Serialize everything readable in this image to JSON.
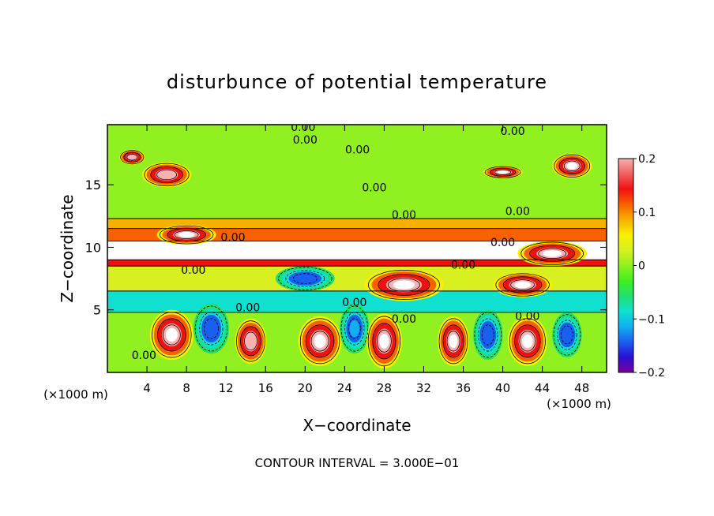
{
  "chart_data": {
    "type": "heatmap",
    "title": "disturbunce of potential temperature",
    "xlabel": "X−coordinate",
    "ylabel": "Z−coordinate",
    "x_unit_label": "(×1000 m)",
    "x_unit_label_left": "(×1000 m)",
    "xlim": [
      0,
      50.5
    ],
    "ylim": [
      0,
      19.8
    ],
    "x_ticks": [
      4,
      8,
      12,
      16,
      20,
      24,
      28,
      32,
      36,
      40,
      44,
      48
    ],
    "y_ticks": [
      5,
      10,
      15
    ],
    "colorbar": {
      "range": [
        -0.2,
        0.2
      ],
      "tick_labels": [
        "0.2",
        "0.1",
        "0",
        "−0.1",
        "−0.2"
      ],
      "tick_values": [
        0.2,
        0.1,
        0,
        -0.1,
        -0.2
      ],
      "colors": [
        "#7b009b",
        "#2a10d0",
        "#1a60f0",
        "#10b0f0",
        "#10e0d0",
        "#20e070",
        "#40f020",
        "#90f020",
        "#d8f020",
        "#f8f000",
        "#f8b000",
        "#f86000",
        "#f01010",
        "#f06060",
        "#f8b0b0"
      ]
    },
    "contour_labels": [
      {
        "text": "0.00",
        "x": 19.8,
        "z": 19.6
      },
      {
        "text": "0.00",
        "x": 20.0,
        "z": 18.6
      },
      {
        "text": "0.00",
        "x": 25.3,
        "z": 17.8
      },
      {
        "text": "0.00",
        "x": 41.0,
        "z": 19.3
      },
      {
        "text": "0.00",
        "x": 27.0,
        "z": 14.8
      },
      {
        "text": "0.00",
        "x": 30.0,
        "z": 12.6
      },
      {
        "text": "0.00",
        "x": 41.5,
        "z": 12.9
      },
      {
        "text": "0.00",
        "x": 12.7,
        "z": 10.8
      },
      {
        "text": "0.00",
        "x": 40.0,
        "z": 10.4
      },
      {
        "text": "0.00",
        "x": 36.0,
        "z": 8.6
      },
      {
        "text": "0.00",
        "x": 8.7,
        "z": 8.2
      },
      {
        "text": "0.00",
        "x": 14.2,
        "z": 5.2
      },
      {
        "text": "0.00",
        "x": 25.0,
        "z": 5.6
      },
      {
        "text": "0.00",
        "x": 30.0,
        "z": 4.3
      },
      {
        "text": "0.00",
        "x": 42.5,
        "z": 4.5
      },
      {
        "text": "0.00",
        "x": 3.7,
        "z": 1.4
      }
    ],
    "contour_interval_text": "CONTOUR INTERVAL = 3.000E−01",
    "bands": [
      {
        "z0": 0,
        "z1": 4.8,
        "value": 0.0
      },
      {
        "z0": 4.8,
        "z1": 6.5,
        "value": -0.08
      },
      {
        "z0": 6.5,
        "z1": 8.5,
        "value": 0.02
      },
      {
        "z0": 8.5,
        "z1": 9.0,
        "value": 0.15
      },
      {
        "z0": 9.0,
        "z1": 10.5,
        "value": 0.25
      },
      {
        "z0": 10.5,
        "z1": 11.5,
        "value": 0.12
      },
      {
        "z0": 11.5,
        "z1": 12.3,
        "value": 0.08
      },
      {
        "z0": 12.3,
        "z1": 19.8,
        "value": 0.0
      }
    ],
    "blobs": [
      {
        "x": 6.5,
        "z": 3.0,
        "rx": 2.2,
        "rz": 2.0,
        "value": 0.25
      },
      {
        "x": 10.5,
        "z": 3.5,
        "rx": 1.8,
        "rz": 2.0,
        "value": -0.15
      },
      {
        "x": 14.5,
        "z": 2.5,
        "rx": 1.6,
        "rz": 1.8,
        "value": 0.2
      },
      {
        "x": 21.5,
        "z": 2.5,
        "rx": 2.2,
        "rz": 2.0,
        "value": 0.25
      },
      {
        "x": 25.0,
        "z": 3.5,
        "rx": 1.5,
        "rz": 2.0,
        "value": -0.12
      },
      {
        "x": 28.0,
        "z": 2.5,
        "rx": 1.8,
        "rz": 2.2,
        "value": 0.22
      },
      {
        "x": 35.0,
        "z": 2.5,
        "rx": 1.6,
        "rz": 2.0,
        "value": 0.22
      },
      {
        "x": 38.5,
        "z": 3.0,
        "rx": 1.5,
        "rz": 2.0,
        "value": -0.15
      },
      {
        "x": 42.5,
        "z": 2.5,
        "rx": 2.0,
        "rz": 2.0,
        "value": 0.25
      },
      {
        "x": 46.5,
        "z": 3.0,
        "rx": 1.5,
        "rz": 1.8,
        "value": -0.15
      },
      {
        "x": 2.5,
        "z": 17.2,
        "rx": 1.3,
        "rz": 0.6,
        "value": 0.2
      },
      {
        "x": 6.0,
        "z": 15.8,
        "rx": 2.5,
        "rz": 1.0,
        "value": 0.2
      },
      {
        "x": 40.0,
        "z": 16.0,
        "rx": 2.0,
        "rz": 0.5,
        "value": 0.22
      },
      {
        "x": 47.0,
        "z": 16.5,
        "rx": 2.0,
        "rz": 1.0,
        "value": 0.22
      },
      {
        "x": 8.0,
        "z": 11.0,
        "rx": 3.0,
        "rz": 0.8,
        "value": 0.25
      },
      {
        "x": 45.0,
        "z": 9.5,
        "rx": 3.5,
        "rz": 1.0,
        "value": 0.25
      },
      {
        "x": 30.0,
        "z": 7.0,
        "rx": 4.0,
        "rz": 1.3,
        "value": 0.25
      },
      {
        "x": 20.0,
        "z": 7.5,
        "rx": 3.0,
        "rz": 1.0,
        "value": -0.15
      },
      {
        "x": 42.0,
        "z": 7.0,
        "rx": 3.0,
        "rz": 1.0,
        "value": 0.25
      }
    ]
  }
}
